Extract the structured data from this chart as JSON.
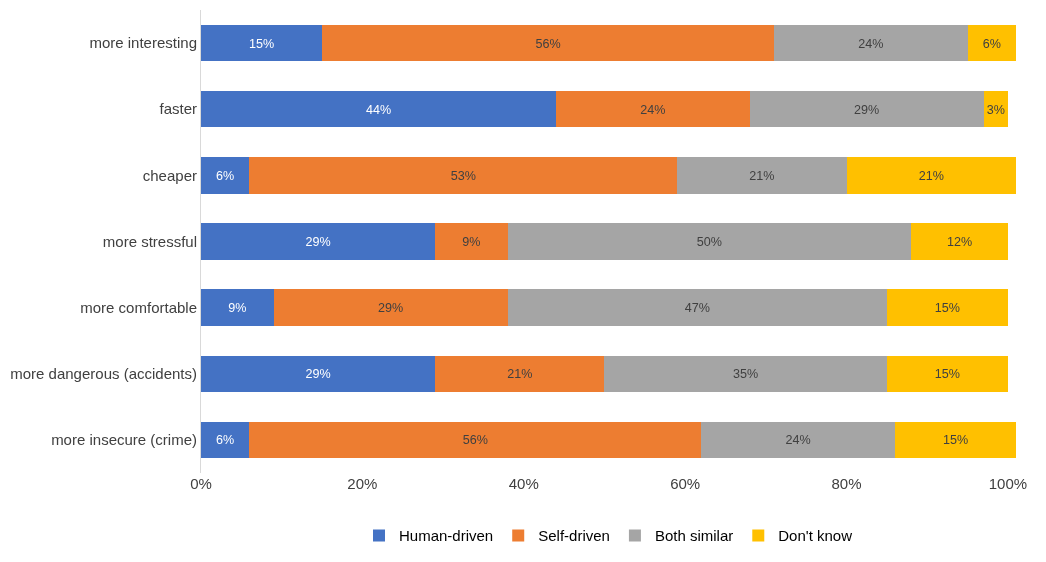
{
  "chart_data": {
    "type": "bar",
    "orientation": "horizontal",
    "stacked": true,
    "categories": [
      "more interesting",
      "faster",
      "cheaper",
      "more stressful",
      "more comfortable",
      "more dangerous (accidents)",
      "more insecure (crime)"
    ],
    "series": [
      {
        "name": "Human-driven",
        "color": "#4472c4",
        "values": [
          15,
          44,
          6,
          29,
          9,
          29,
          6
        ],
        "value_labels": [
          "15%",
          "44%",
          "6%",
          "29%",
          "9%",
          "29%",
          "6%"
        ]
      },
      {
        "name": "Self-driven",
        "color": "#ed7d31",
        "values": [
          56,
          24,
          53,
          9,
          29,
          21,
          56
        ],
        "value_labels": [
          "56%",
          "24%",
          "53%",
          "9%",
          "29%",
          "21%",
          "56%"
        ]
      },
      {
        "name": "Both similar",
        "color": "#a5a5a5",
        "values": [
          24,
          29,
          21,
          50,
          47,
          35,
          24
        ],
        "value_labels": [
          "24%",
          "29%",
          "21%",
          "50%",
          "47%",
          "35%",
          "24%"
        ]
      },
      {
        "name": "Don't know",
        "color": "#ffc000",
        "values": [
          6,
          3,
          21,
          12,
          15,
          15,
          15
        ],
        "value_labels": [
          "6%",
          "3%",
          "21%",
          "12%",
          "15%",
          "15%",
          "15%"
        ]
      }
    ],
    "xlim": [
      0,
      101
    ],
    "xticks": [
      {
        "value": 0,
        "label": "0%"
      },
      {
        "value": 20,
        "label": "20%"
      },
      {
        "value": 40,
        "label": "40%"
      },
      {
        "value": 60,
        "label": "60%"
      },
      {
        "value": 80,
        "label": "80%"
      },
      {
        "value": 100,
        "label": "100%"
      }
    ],
    "legend": "bottom"
  }
}
